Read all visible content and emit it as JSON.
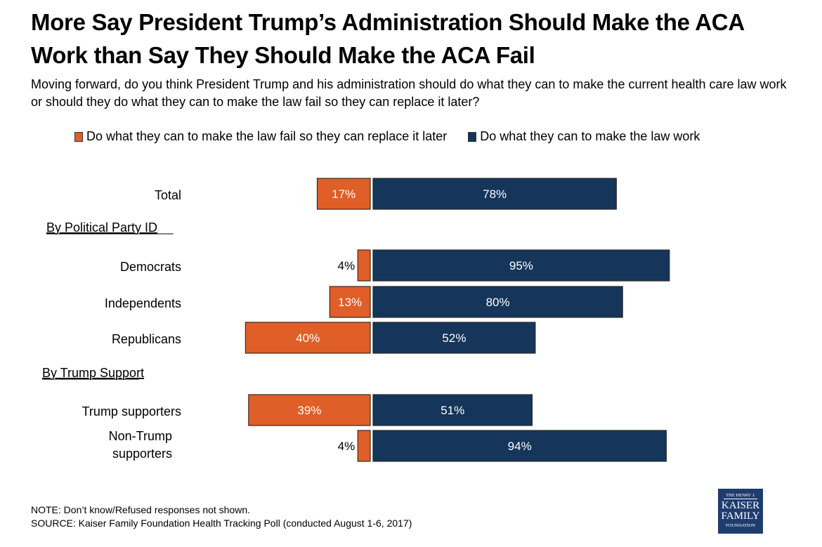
{
  "title": "More Say President Trump’s Administration Should Make the ACA Work than Say They Should Make the ACA Fail",
  "subtitle": "Moving forward, do you think President Trump and his administration should do what they can to make the current health care law work or should they do what they can to make the law fail so they can replace it later?",
  "colors": {
    "fail": "#e05e27",
    "work": "#15355a"
  },
  "chart_data": {
    "type": "bar",
    "orientation": "horizontal-diverging",
    "title": "More Say President Trump’s Administration Should Make the ACA Work than Say They Should Make the ACA Fail",
    "xlabel": "",
    "ylabel": "",
    "xlim": [
      -50,
      100
    ],
    "legend_position": "top",
    "grid": false,
    "categories": [
      "Total",
      "Democrats",
      "Independents",
      "Republicans",
      "Trump supporters",
      "Non-Trump supporters"
    ],
    "groups": [
      {
        "label": "By Political Party ID",
        "before": "Democrats"
      },
      {
        "label": "By Trump Support",
        "before": "Trump supporters"
      }
    ],
    "series": [
      {
        "name": "Do what they can to make the law fail so they can replace it later",
        "color": "#e05e27",
        "direction": "left",
        "values": [
          17,
          4,
          13,
          40,
          39,
          4
        ]
      },
      {
        "name": "Do what they can to make the law work",
        "color": "#15355a",
        "direction": "right",
        "values": [
          78,
          95,
          80,
          52,
          51,
          94
        ]
      }
    ],
    "data_labels": {
      "fail": [
        "17%",
        "4%",
        "13%",
        "40%",
        "39%",
        "4%"
      ],
      "work": [
        "78%",
        "95%",
        "80%",
        "52%",
        "51%",
        "94%"
      ]
    }
  },
  "row_labels": [
    "Total",
    "Democrats",
    "Independents",
    "Republicans",
    "Trump supporters",
    "Non-Trump|supporters"
  ],
  "group_labels": [
    "By Political Party ID",
    "By Trump Support"
  ],
  "legend": [
    {
      "label": "Do what they can to make the law fail so they can replace it later",
      "color": "#e05e27"
    },
    {
      "label": "Do what they can to make the law work",
      "color": "#15355a"
    }
  ],
  "footer": {
    "note": "NOTE: Don’t know/Refused responses not shown.",
    "source": "SOURCE: Kaiser Family Foundation Health Tracking Poll (conducted August 1-6, 2017)"
  },
  "logo": {
    "line1": "THE HENRY J.",
    "line2": "KAISER",
    "line3": "FAMILY",
    "line4": "FOUNDATION"
  }
}
